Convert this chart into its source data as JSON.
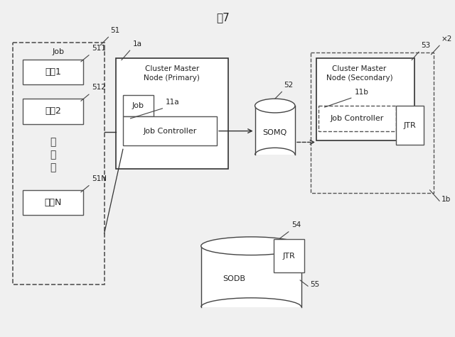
{
  "bg_color": "#f0f0f0",
  "labels": {
    "title": "図7",
    "job_group": "Job",
    "shori1": "処理1",
    "shori2": "処理2",
    "shoriN": "処理N",
    "cluster_primary_title": "Cluster Master\nNode (Primary)",
    "job_box": "Job",
    "job_controller": "Job Controller",
    "somq": "SOMQ",
    "cluster_secondary_title": "Cluster Master\nNode (Secondary)",
    "job_controller2": "Job Controller",
    "jtr_top": "JTR",
    "sodb": "SODB",
    "jtr_bottom": "JTR",
    "ref_51": "51",
    "ref_511": "511",
    "ref_512": "512",
    "ref_51n": "51N",
    "ref_1a": "1a",
    "ref_11a": "11a",
    "ref_52": "52",
    "ref_53": "53",
    "ref_11b": "11b",
    "ref_1b": "1b",
    "ref_x2": "×2",
    "ref_54": "54",
    "ref_55": "55"
  }
}
